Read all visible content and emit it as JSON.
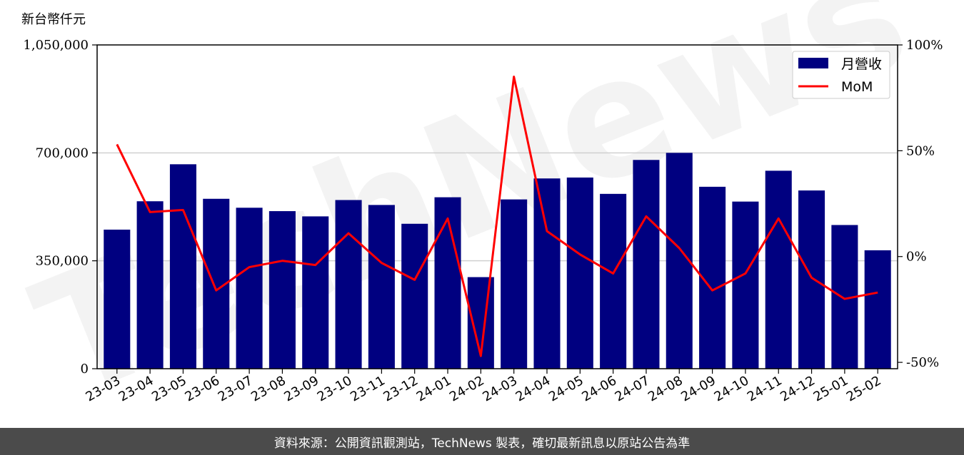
{
  "footer": {
    "source_text": "資料來源：公開資訊觀測站，TechNews 製表，確切最新訊息以原站公告為準"
  },
  "watermark": {
    "text": "TechNews"
  },
  "colors": {
    "bar": "#000080",
    "line": "#ff0000",
    "grid": "#d0d0d0",
    "background": "#ffffff",
    "footer_bg": "#4b4b4b"
  },
  "chart_data": {
    "type": "bar",
    "title": "",
    "ylabel": "新台幣仟元",
    "xlabel": "",
    "categories": [
      "23-03",
      "23-04",
      "23-05",
      "23-06",
      "23-07",
      "23-08",
      "23-09",
      "23-10",
      "23-11",
      "23-12",
      "24-01",
      "24-02",
      "24-03",
      "24-04",
      "24-05",
      "24-06",
      "24-07",
      "24-08",
      "24-09",
      "24-10",
      "24-11",
      "24-12",
      "25-01",
      "25-02"
    ],
    "series": [
      {
        "name": "月營收",
        "type": "bar",
        "axis": "left",
        "values": [
          451000,
          543000,
          663000,
          551000,
          522000,
          511000,
          494000,
          547000,
          531000,
          470000,
          556000,
          297000,
          549000,
          617000,
          620000,
          567000,
          677000,
          700000,
          590000,
          542000,
          642000,
          578000,
          466000,
          384000
        ]
      },
      {
        "name": "MoM",
        "type": "line",
        "axis": "right",
        "values": [
          53,
          21,
          22,
          -16,
          -5,
          -2,
          -4,
          11,
          -3,
          -11,
          18,
          -47,
          85,
          12,
          1,
          -8,
          19,
          4,
          -16,
          -8,
          18,
          -10,
          -20,
          -17
        ]
      }
    ],
    "y_left": {
      "lim": [
        0,
        1050000
      ],
      "ticks": [
        0,
        350000,
        700000,
        1050000
      ],
      "tick_labels": [
        "0",
        "350,000",
        "700,000",
        "1,050,000"
      ]
    },
    "y_right": {
      "lim": [
        -53,
        100
      ],
      "ticks": [
        -50,
        0,
        50,
        100
      ],
      "tick_labels": [
        "-50%",
        "0%",
        "50%",
        "100%"
      ]
    },
    "grid": "horizontal",
    "legend": {
      "position": "top-right",
      "entries": [
        "月營收",
        "MoM"
      ]
    }
  }
}
